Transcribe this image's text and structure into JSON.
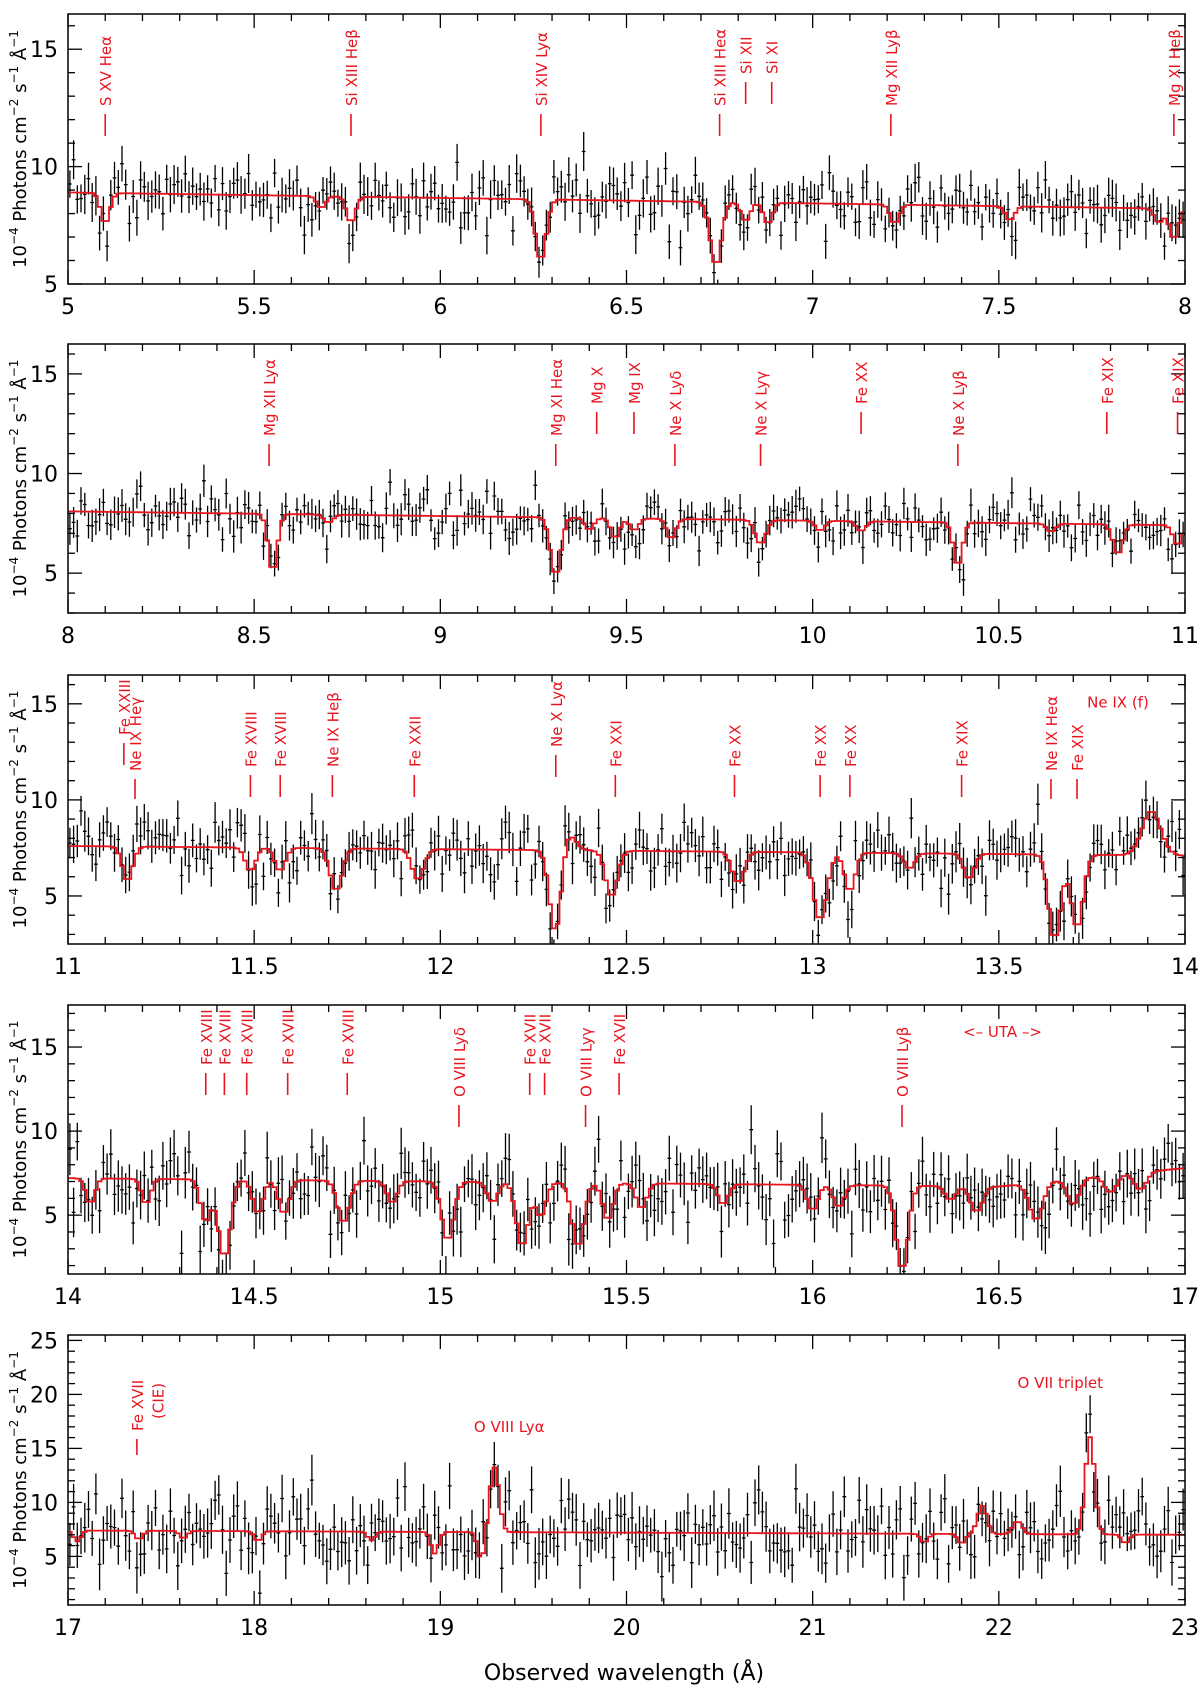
{
  "figure": {
    "xlabel": "Observed wavelength (Å)",
    "ylabel_panels": "10⁻⁴ Photons cm⁻² s⁻¹ Å⁻¹",
    "ylabel_parts": [
      "10",
      "−4",
      " Photons cm",
      "−2",
      " s",
      "−1",
      " Å",
      "−1"
    ],
    "colors": {
      "data": "#000000",
      "model": "#e8141e",
      "label": "#e8141e",
      "axis": "#000000"
    }
  },
  "chart_data": [
    {
      "type": "line",
      "title": "",
      "xlabel": "Observed wavelength (Å)",
      "ylabel": "10⁻⁴ Photons cm⁻² s⁻¹ Å⁻¹",
      "xlim": [
        5,
        8
      ],
      "ylim": [
        5,
        16.5
      ],
      "xticks": [
        5,
        5.5,
        6,
        6.5,
        7,
        7.5,
        8
      ],
      "xtick_labels": [
        "5",
        "5.5",
        "6",
        "6.5",
        "7",
        "7.5",
        "8"
      ],
      "yticks": [
        5,
        10,
        15
      ],
      "ytick_labels": [
        "5",
        "10",
        "15"
      ],
      "continuum": [
        [
          5.0,
          8.9
        ],
        [
          8.0,
          8.2
        ]
      ],
      "noise": 0.7,
      "features": [
        {
          "x": 5.1,
          "depth": 1.3,
          "width": 0.012
        },
        {
          "x": 5.68,
          "depth": 0.5,
          "width": 0.012
        },
        {
          "x": 5.76,
          "depth": 1.1,
          "width": 0.012
        },
        {
          "x": 6.27,
          "depth": 2.6,
          "width": 0.014
        },
        {
          "x": 6.74,
          "depth": 2.7,
          "width": 0.015
        },
        {
          "x": 6.82,
          "depth": 0.8,
          "width": 0.012
        },
        {
          "x": 6.88,
          "depth": 0.9,
          "width": 0.012
        },
        {
          "x": 7.22,
          "depth": 0.8,
          "width": 0.012
        },
        {
          "x": 7.53,
          "depth": 0.6,
          "width": 0.012
        },
        {
          "x": 7.93,
          "depth": 0.6,
          "width": 0.012
        },
        {
          "x": 7.97,
          "depth": 1.3,
          "width": 0.012
        }
      ],
      "labels": [
        {
          "text": "S XV Heα",
          "x": 5.1,
          "slot": 0
        },
        {
          "text": "Si XIII Heβ",
          "x": 5.76,
          "slot": 0
        },
        {
          "text": "Si XIV Lyα",
          "x": 6.27,
          "slot": 0
        },
        {
          "text": "Si XIII Heα",
          "x": 6.75,
          "slot": 0
        },
        {
          "text": "Si XII",
          "x": 6.82,
          "slot": 1
        },
        {
          "text": "Si XI",
          "x": 6.89,
          "slot": 1
        },
        {
          "text": "Mg XII Lyβ",
          "x": 7.21,
          "slot": 0
        },
        {
          "text": "Mg XI Heβ",
          "x": 7.97,
          "slot": 0
        }
      ]
    },
    {
      "type": "line",
      "title": "",
      "xlabel": "Observed wavelength (Å)",
      "ylabel": "10⁻⁴ Photons cm⁻² s⁻¹ Å⁻¹",
      "xlim": [
        8,
        11
      ],
      "ylim": [
        3,
        16.5
      ],
      "xticks": [
        8,
        8.5,
        9,
        9.5,
        10,
        10.5,
        11
      ],
      "xtick_labels": [
        "8",
        "8.5",
        "9",
        "9.5",
        "10",
        "10.5",
        "11"
      ],
      "yticks": [
        5,
        10,
        15
      ],
      "ytick_labels": [
        "5",
        "10",
        "15"
      ],
      "continuum": [
        [
          8.0,
          8.1
        ],
        [
          11.0,
          7.4
        ]
      ],
      "noise": 0.7,
      "features": [
        {
          "x": 8.55,
          "depth": 2.9,
          "width": 0.012
        },
        {
          "x": 8.7,
          "depth": 0.4,
          "width": 0.012
        },
        {
          "x": 9.31,
          "depth": 2.9,
          "width": 0.014
        },
        {
          "x": 9.4,
          "depth": 0.6,
          "width": 0.012
        },
        {
          "x": 9.47,
          "depth": 1.0,
          "width": 0.012
        },
        {
          "x": 9.52,
          "depth": 0.6,
          "width": 0.012
        },
        {
          "x": 9.62,
          "depth": 1.0,
          "width": 0.012
        },
        {
          "x": 9.86,
          "depth": 1.2,
          "width": 0.014
        },
        {
          "x": 10.02,
          "depth": 0.5,
          "width": 0.012
        },
        {
          "x": 10.13,
          "depth": 0.5,
          "width": 0.012
        },
        {
          "x": 10.39,
          "depth": 2.2,
          "width": 0.012
        },
        {
          "x": 10.64,
          "depth": 0.4,
          "width": 0.012
        },
        {
          "x": 10.82,
          "depth": 1.5,
          "width": 0.013
        },
        {
          "x": 10.98,
          "depth": 1.0,
          "width": 0.012
        }
      ],
      "labels": [
        {
          "text": "Mg XII Lyα",
          "x": 8.54,
          "slot": 0
        },
        {
          "text": "Mg XI Heα",
          "x": 9.31,
          "slot": 0
        },
        {
          "text": "Mg X",
          "x": 9.42,
          "slot": 1
        },
        {
          "text": "Mg IX",
          "x": 9.52,
          "slot": 1
        },
        {
          "text": "Ne X Lyδ",
          "x": 9.63,
          "slot": 0
        },
        {
          "text": "Ne X Lyγ",
          "x": 9.86,
          "slot": 0
        },
        {
          "text": "Fe XX",
          "x": 10.13,
          "slot": 1
        },
        {
          "text": "Ne X Lyβ",
          "x": 10.39,
          "slot": 0
        },
        {
          "text": "Fe XIX",
          "x": 10.79,
          "slot": 1
        },
        {
          "text": "Fe XIX",
          "x": 10.98,
          "slot": 1
        }
      ]
    },
    {
      "type": "line",
      "title": "",
      "xlabel": "Observed wavelength (Å)",
      "ylabel": "10⁻⁴ Photons cm⁻² s⁻¹ Å⁻¹",
      "xlim": [
        11,
        14
      ],
      "ylim": [
        2.5,
        16.5
      ],
      "xticks": [
        11,
        11.5,
        12,
        12.5,
        13,
        13.5,
        14
      ],
      "xtick_labels": [
        "11",
        "11.5",
        "12",
        "12.5",
        "13",
        "13.5",
        "14"
      ],
      "yticks": [
        5,
        10,
        15
      ],
      "ytick_labels": [
        "5",
        "10",
        "15"
      ],
      "continuum": [
        [
          11.0,
          7.6
        ],
        [
          14.0,
          7.1
        ]
      ],
      "noise": 0.9,
      "features": [
        {
          "x": 11.16,
          "depth": 1.8,
          "width": 0.014
        },
        {
          "x": 11.49,
          "depth": 1.2,
          "width": 0.014
        },
        {
          "x": 11.57,
          "depth": 1.2,
          "width": 0.014
        },
        {
          "x": 11.72,
          "depth": 2.2,
          "width": 0.016
        },
        {
          "x": 11.94,
          "depth": 1.6,
          "width": 0.016
        },
        {
          "x": 12.31,
          "depth": 4.5,
          "width": 0.016
        },
        {
          "x": 12.46,
          "depth": 2.4,
          "width": 0.016
        },
        {
          "x": 12.8,
          "depth": 1.6,
          "width": 0.016
        },
        {
          "x": 13.02,
          "depth": 3.5,
          "width": 0.018
        },
        {
          "x": 13.1,
          "depth": 2.0,
          "width": 0.014
        },
        {
          "x": 13.26,
          "depth": 0.8,
          "width": 0.014
        },
        {
          "x": 13.42,
          "depth": 1.3,
          "width": 0.014
        },
        {
          "x": 13.65,
          "depth": 4.4,
          "width": 0.016
        },
        {
          "x": 13.71,
          "depth": 3.8,
          "width": 0.016
        }
      ],
      "emission": [
        {
          "x": 12.34,
          "height": 1.0,
          "width": 0.02
        },
        {
          "x": 13.91,
          "height": 2.3,
          "width": 0.025
        }
      ],
      "labels": [
        {
          "text": "Fe XXIII",
          "x": 11.15,
          "slot": 1
        },
        {
          "text": "Ne IX Heγ",
          "x": 11.18,
          "slot": 2
        },
        {
          "text": "Fe XVIII",
          "x": 11.49,
          "slot": 0
        },
        {
          "text": "Fe XVIII",
          "x": 11.57,
          "slot": 0
        },
        {
          "text": "Ne IX Heβ",
          "x": 11.71,
          "slot": 0
        },
        {
          "text": "Fe XXII",
          "x": 11.93,
          "slot": 0
        },
        {
          "text": "Ne X Lyα",
          "x": 12.31,
          "slot": 3
        },
        {
          "text": "Fe XXI",
          "x": 12.47,
          "slot": 0
        },
        {
          "text": "Fe XX",
          "x": 12.79,
          "slot": 0
        },
        {
          "text": "Fe XX",
          "x": 13.02,
          "slot": 0
        },
        {
          "text": "Fe XX",
          "x": 13.1,
          "slot": 0
        },
        {
          "text": "Fe XIX",
          "x": 13.4,
          "slot": 0
        },
        {
          "text": "Ne IX Heα",
          "x": 13.64,
          "slot": 2
        },
        {
          "text": "Fe XIX",
          "x": 13.71,
          "slot": 2
        }
      ],
      "free_labels": [
        {
          "text": "Ne IX (f)",
          "x": 13.82,
          "y": 14.8
        }
      ]
    },
    {
      "type": "line",
      "title": "",
      "xlabel": "Observed wavelength (Å)",
      "ylabel": "10⁻⁴ Photons cm⁻² s⁻¹ Å⁻¹",
      "xlim": [
        14,
        17
      ],
      "ylim": [
        1.5,
        17.5
      ],
      "xticks": [
        14,
        14.5,
        15,
        15.5,
        16,
        16.5,
        17
      ],
      "xtick_labels": [
        "14",
        "14.5",
        "15",
        "15.5",
        "16",
        "16.5",
        "17"
      ],
      "yticks": [
        5,
        10,
        15
      ],
      "ytick_labels": [
        "5",
        "10",
        "15"
      ],
      "continuum": [
        [
          14.0,
          7.2
        ],
        [
          16.5,
          6.7
        ],
        [
          17.0,
          7.8
        ]
      ],
      "noise": 1.3,
      "features": [
        {
          "x": 14.06,
          "depth": 1.5,
          "width": 0.012
        },
        {
          "x": 14.21,
          "depth": 1.5,
          "width": 0.012
        },
        {
          "x": 14.37,
          "depth": 2.5,
          "width": 0.014
        },
        {
          "x": 14.42,
          "depth": 4.6,
          "width": 0.016
        },
        {
          "x": 14.51,
          "depth": 2.0,
          "width": 0.014
        },
        {
          "x": 14.58,
          "depth": 2.0,
          "width": 0.014
        },
        {
          "x": 14.74,
          "depth": 2.5,
          "width": 0.016
        },
        {
          "x": 14.87,
          "depth": 1.3,
          "width": 0.014
        },
        {
          "x": 15.02,
          "depth": 3.5,
          "width": 0.016
        },
        {
          "x": 15.14,
          "depth": 1.2,
          "width": 0.014
        },
        {
          "x": 15.22,
          "depth": 3.8,
          "width": 0.016
        },
        {
          "x": 15.27,
          "depth": 2.0,
          "width": 0.014
        },
        {
          "x": 15.37,
          "depth": 3.8,
          "width": 0.016
        },
        {
          "x": 15.45,
          "depth": 2.2,
          "width": 0.014
        },
        {
          "x": 15.54,
          "depth": 1.5,
          "width": 0.014
        },
        {
          "x": 15.76,
          "depth": 1.2,
          "width": 0.014
        },
        {
          "x": 16.0,
          "depth": 1.5,
          "width": 0.014
        },
        {
          "x": 16.07,
          "depth": 1.3,
          "width": 0.014
        },
        {
          "x": 16.24,
          "depth": 5.0,
          "width": 0.016
        },
        {
          "x": 16.37,
          "depth": 0.8,
          "width": 0.014
        },
        {
          "x": 16.44,
          "depth": 1.5,
          "width": 0.016
        },
        {
          "x": 16.6,
          "depth": 2.2,
          "width": 0.018
        },
        {
          "x": 16.7,
          "depth": 1.5,
          "width": 0.016
        },
        {
          "x": 16.8,
          "depth": 1.0,
          "width": 0.016
        },
        {
          "x": 16.88,
          "depth": 1.0,
          "width": 0.016
        }
      ],
      "labels": [
        {
          "text": "Fe XVIII",
          "x": 14.37,
          "slot": 1
        },
        {
          "text": "Fe XVIII",
          "x": 14.42,
          "slot": 1
        },
        {
          "text": "Fe XVIII",
          "x": 14.48,
          "slot": 1
        },
        {
          "text": "Fe XVIII",
          "x": 14.59,
          "slot": 1
        },
        {
          "text": "Fe XVIII",
          "x": 14.75,
          "slot": 1
        },
        {
          "text": "O VIII Lyδ",
          "x": 15.05,
          "slot": 0
        },
        {
          "text": "Fe XVII",
          "x": 15.24,
          "slot": 1
        },
        {
          "text": "Fe XVII",
          "x": 15.28,
          "slot": 1
        },
        {
          "text": "O VIII Lyγ",
          "x": 15.39,
          "slot": 0
        },
        {
          "text": "Fe XVII",
          "x": 15.48,
          "slot": 1
        },
        {
          "text": "O VIII Lyβ",
          "x": 16.24,
          "slot": 0
        }
      ],
      "free_labels": [
        {
          "text": "<– UTA –>",
          "x": 16.51,
          "y": 15.6
        }
      ]
    },
    {
      "type": "line",
      "title": "",
      "xlabel": "Observed wavelength (Å)",
      "ylabel": "10⁻⁴ Photons cm⁻² s⁻¹ Å⁻¹",
      "xlim": [
        17,
        23
      ],
      "ylim": [
        0.5,
        25.5
      ],
      "xticks": [
        17,
        18,
        19,
        20,
        21,
        22,
        23
      ],
      "xtick_labels": [
        "17",
        "18",
        "19",
        "20",
        "21",
        "22",
        "23"
      ],
      "yticks": [
        5,
        10,
        15,
        20,
        25
      ],
      "ytick_labels": [
        "5",
        "10",
        "15",
        "20",
        "25"
      ],
      "continuum": [
        [
          17.0,
          7.4
        ],
        [
          23.0,
          7.0
        ]
      ],
      "noise": 2.0,
      "features": [
        {
          "x": 17.05,
          "depth": 1.0,
          "width": 0.02
        },
        {
          "x": 17.38,
          "depth": 0.8,
          "width": 0.02
        },
        {
          "x": 17.62,
          "depth": 0.7,
          "width": 0.02
        },
        {
          "x": 18.02,
          "depth": 0.9,
          "width": 0.02
        },
        {
          "x": 18.63,
          "depth": 0.8,
          "width": 0.02
        },
        {
          "x": 18.97,
          "depth": 2.0,
          "width": 0.02
        },
        {
          "x": 19.22,
          "depth": 2.6,
          "width": 0.02
        },
        {
          "x": 21.6,
          "depth": 0.8,
          "width": 0.02
        },
        {
          "x": 21.8,
          "depth": 0.9,
          "width": 0.02
        },
        {
          "x": 22.68,
          "depth": 0.8,
          "width": 0.02
        }
      ],
      "emission": [
        {
          "x": 19.29,
          "height": 6.0,
          "width": 0.025
        },
        {
          "x": 21.91,
          "height": 2.6,
          "width": 0.025
        },
        {
          "x": 22.1,
          "height": 1.2,
          "width": 0.025
        },
        {
          "x": 22.49,
          "height": 9.0,
          "width": 0.025
        }
      ],
      "labels": [
        {
          "text": "Fe XVII",
          "x": 17.37,
          "slot": 4
        },
        {
          "text": "(CIE)",
          "x": 17.48,
          "slot": 5
        }
      ],
      "free_labels": [
        {
          "text": "O VIII Lyα",
          "x": 19.37,
          "y": 16.5
        },
        {
          "text": "O VII triplet",
          "x": 22.33,
          "y": 20.6
        }
      ]
    }
  ]
}
